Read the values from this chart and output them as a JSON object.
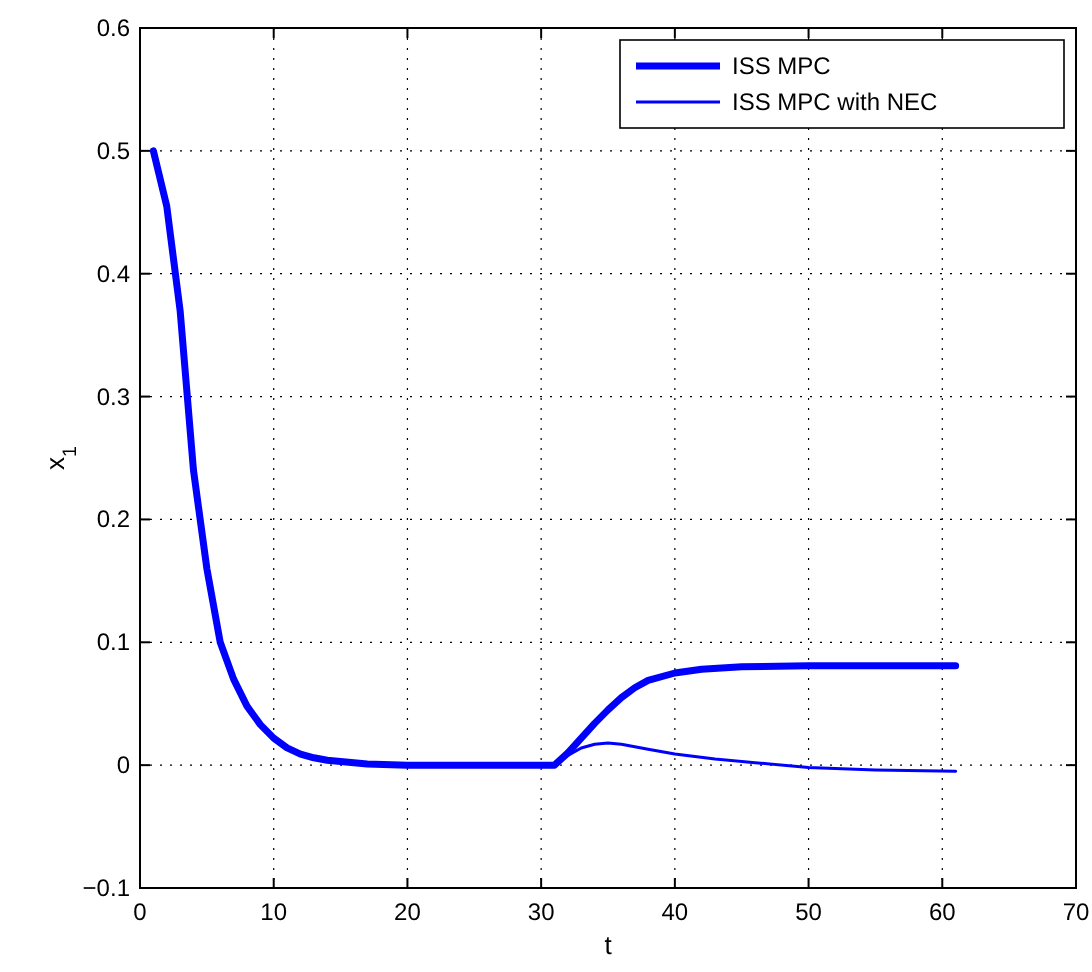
{
  "chart_data": {
    "type": "line",
    "xlabel": "t",
    "ylabel": "x$_{1}$",
    "xlim": [
      0,
      70
    ],
    "xticks": [
      0,
      10,
      20,
      30,
      40,
      50,
      60,
      70
    ],
    "ylim": [
      -0.1,
      0.6
    ],
    "yticks": [
      -0.1,
      0,
      0.1,
      0.2,
      0.3,
      0.4,
      0.5,
      0.6
    ],
    "grid": true,
    "legend": "top right",
    "line_style": "solid",
    "marker": "none",
    "series": [
      {
        "name": "ISS MPC",
        "color": "#0000ff",
        "x": [
          1,
          2,
          3,
          4,
          5,
          6,
          7,
          8,
          9,
          10,
          11,
          12,
          13,
          14,
          15,
          17,
          20,
          25,
          31,
          32,
          33,
          34,
          35,
          36,
          37,
          38,
          40,
          42,
          45,
          50,
          55,
          61
        ],
        "values": [
          0.5,
          0.455,
          0.37,
          0.24,
          0.16,
          0.1,
          0.07,
          0.048,
          0.033,
          0.022,
          0.014,
          0.009,
          0.006,
          0.004,
          0.003,
          0.001,
          0,
          0,
          0,
          0.01,
          0.022,
          0.034,
          0.045,
          0.055,
          0.063,
          0.069,
          0.075,
          0.078,
          0.08,
          0.081,
          0.081,
          0.081
        ]
      },
      {
        "name": "ISS MPC with NEC",
        "color": "#0000ff",
        "x": [
          1,
          2,
          3,
          4,
          5,
          6,
          7,
          8,
          9,
          10,
          11,
          12,
          13,
          14,
          15,
          17,
          20,
          25,
          31,
          32,
          33,
          34,
          35,
          36,
          38,
          40,
          43,
          46,
          50,
          55,
          61
        ],
        "values": [
          0.5,
          0.455,
          0.37,
          0.24,
          0.16,
          0.1,
          0.07,
          0.048,
          0.033,
          0.022,
          0.014,
          0.009,
          0.006,
          0.004,
          0.003,
          0.001,
          0,
          0,
          0,
          0.008,
          0.014,
          0.017,
          0.018,
          0.017,
          0.013,
          0.009,
          0.005,
          0.002,
          -0.002,
          -0.004,
          -0.005
        ]
      }
    ]
  }
}
